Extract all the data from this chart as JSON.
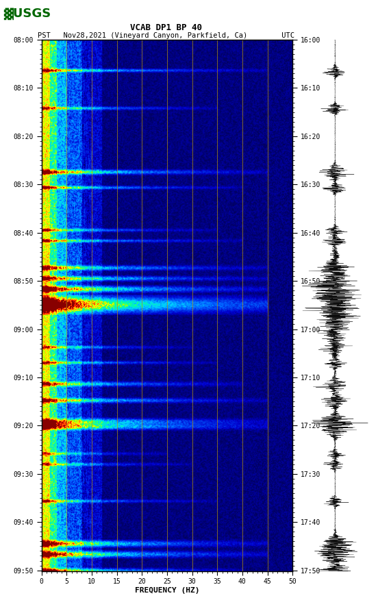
{
  "title_line1": "VCAB DP1 BP 40",
  "title_line2": "PST   Nov28,2021 (Vineyard Canyon, Parkfield, Ca)        UTC",
  "xlabel": "FREQUENCY (HZ)",
  "freq_min": 0,
  "freq_max": 50,
  "ytick_labels_pst": [
    "08:00",
    "08:10",
    "08:20",
    "08:30",
    "08:40",
    "08:50",
    "09:00",
    "09:10",
    "09:20",
    "09:30",
    "09:40",
    "09:50"
  ],
  "ytick_labels_utc": [
    "16:00",
    "16:10",
    "16:20",
    "16:30",
    "16:40",
    "16:50",
    "17:00",
    "17:10",
    "17:20",
    "17:30",
    "17:40",
    "17:50"
  ],
  "freq_gridlines": [
    5,
    10,
    15,
    20,
    25,
    30,
    35,
    40,
    45
  ],
  "gridline_color": "#b8960c",
  "background_color": "#ffffff",
  "fig_width": 5.52,
  "fig_height": 8.92,
  "total_minutes": 110,
  "n_time": 550,
  "n_freq": 250
}
